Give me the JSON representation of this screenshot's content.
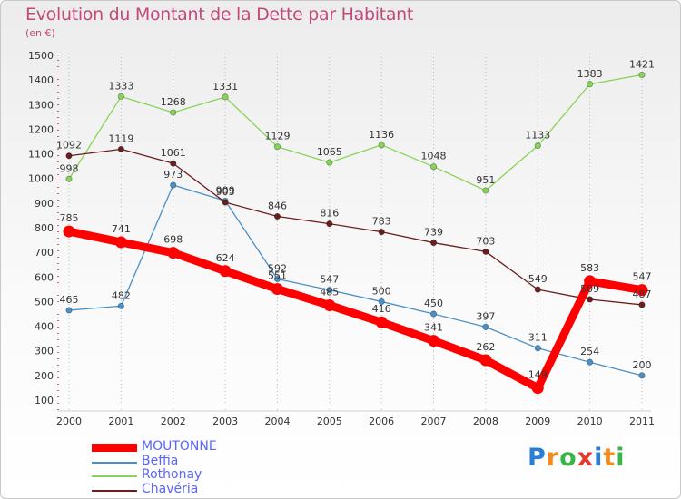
{
  "header": {
    "title": "Evolution du Montant de la Dette par Habitant",
    "subtitle": "(en €)"
  },
  "logo": {
    "letters": [
      "P",
      "r",
      "o",
      "x",
      "i",
      "t",
      "i"
    ],
    "colors": [
      "#2a7fd4",
      "#f28b1e",
      "#3bb54a",
      "#e23a2c",
      "#2a7fd4",
      "#f28b1e",
      "#3bb54a"
    ]
  },
  "chart_data": {
    "type": "line",
    "title": "Evolution du Montant de la Dette par Habitant",
    "subtitle": "(en €)",
    "xlabel": "",
    "ylabel": "",
    "x": [
      "2000",
      "2001",
      "2002",
      "2003",
      "2004",
      "2005",
      "2006",
      "2007",
      "2008",
      "2009",
      "2010",
      "2011"
    ],
    "ylim": [
      100,
      1500
    ],
    "yticks": [
      "100",
      "200",
      "300",
      "400",
      "500",
      "600",
      "700",
      "800",
      "900",
      "1000",
      "1100",
      "1200",
      "1300",
      "1400",
      "1500"
    ],
    "grid": "vertical",
    "legend_position": "bottom-left",
    "series": [
      {
        "name": "MOUTONNE",
        "color": "#ff0000",
        "emphasis": true,
        "values": [
          785,
          741,
          698,
          624,
          551,
          485,
          416,
          341,
          262,
          149,
          583,
          547
        ]
      },
      {
        "name": "Beffia",
        "color": "#4a90c8",
        "emphasis": false,
        "values": [
          465,
          482,
          973,
          909,
          592,
          547,
          500,
          450,
          397,
          311,
          254,
          200
        ]
      },
      {
        "name": "Rothonay",
        "color": "#88d458",
        "emphasis": false,
        "values": [
          998,
          1333,
          1268,
          1331,
          1129,
          1065,
          1136,
          1048,
          951,
          1133,
          1383,
          1421
        ]
      },
      {
        "name": "Chavéria",
        "color": "#6b1e1e",
        "emphasis": false,
        "values": [
          1092,
          1119,
          1061,
          903,
          846,
          816,
          783,
          739,
          703,
          549,
          509,
          487
        ]
      }
    ]
  }
}
